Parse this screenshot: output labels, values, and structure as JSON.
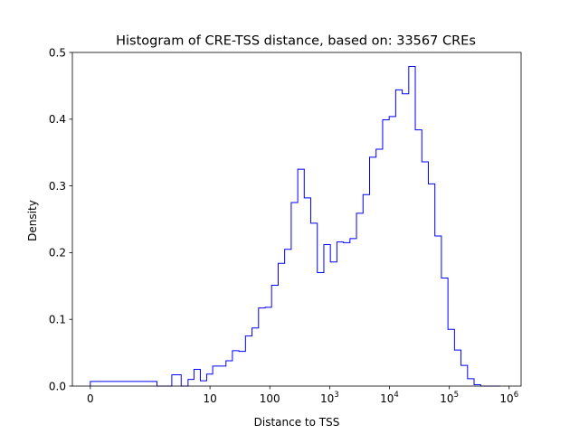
{
  "chart_data": {
    "type": "step-histogram",
    "title": "Histogram of CRE-TSS distance, based on: 33567 CREs",
    "xlabel": "Distance to TSS",
    "ylabel": "Density",
    "x_scale": "symlog",
    "x_ticks": [
      {
        "value": 0,
        "base": "0",
        "exp": ""
      },
      {
        "value": 10,
        "base": "10",
        "exp": ""
      },
      {
        "value": 100,
        "base": "100",
        "exp": ""
      },
      {
        "value": 1000,
        "base": "10",
        "exp": "3"
      },
      {
        "value": 10000,
        "base": "10",
        "exp": "4"
      },
      {
        "value": 100000,
        "base": "10",
        "exp": "5"
      },
      {
        "value": 1000000,
        "base": "10",
        "exp": "6"
      }
    ],
    "y_ticks": [
      "0.0",
      "0.1",
      "0.2",
      "0.3",
      "0.4",
      "0.5"
    ],
    "ylim": [
      0,
      0.5
    ],
    "series_color": "#0000ff",
    "bin_edges": [
      0,
      1.3,
      2.3,
      3.3,
      4.3,
      5.4,
      6.9,
      8.8,
      11.1,
      14.3,
      18.5,
      23.7,
      30.5,
      39.2,
      50.4,
      64.8,
      83.4,
      107,
      138,
      177,
      228,
      293,
      376,
      484,
      622,
      800,
      1028,
      1322,
      1700,
      2186,
      2811,
      3614,
      4647,
      5975,
      7683,
      9879,
      12702,
      16333,
      21000,
      27002,
      34720,
      44643,
      57403,
      73810,
      94905,
      122030,
      156908,
      201755,
      259420,
      333567,
      428906,
      551495,
      709122
    ],
    "densities": [
      0.007,
      0.0,
      0.017,
      0.0,
      0.01,
      0.025,
      0.008,
      0.018,
      0.03,
      0.03,
      0.038,
      0.053,
      0.052,
      0.075,
      0.087,
      0.117,
      0.118,
      0.151,
      0.184,
      0.205,
      0.275,
      0.325,
      0.282,
      0.244,
      0.17,
      0.212,
      0.186,
      0.216,
      0.215,
      0.221,
      0.259,
      0.287,
      0.343,
      0.355,
      0.399,
      0.404,
      0.444,
      0.438,
      0.479,
      0.384,
      0.336,
      0.303,
      0.225,
      0.162,
      0.085,
      0.054,
      0.031,
      0.011,
      0.002,
      0.0,
      0.0,
      0.0
    ]
  }
}
